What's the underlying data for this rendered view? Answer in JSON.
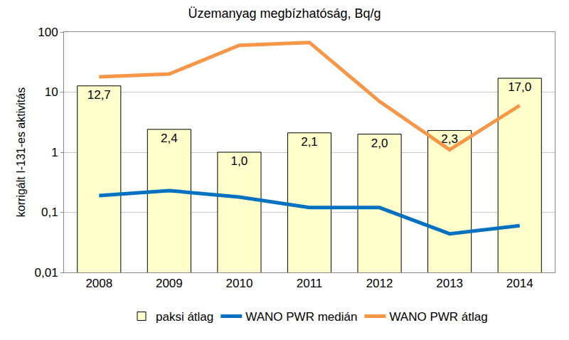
{
  "chart_data": {
    "type": "bar",
    "title": "Üzemanyag megbízhatóság, Bq/g",
    "y_label": "korrigált I-131-es aktivitás",
    "categories": [
      "2008",
      "2009",
      "2010",
      "2011",
      "2012",
      "2013",
      "2014"
    ],
    "series": [
      {
        "name": "paksi átlag",
        "type": "bar",
        "color": "#FFFFCC",
        "values": [
          12.7,
          2.4,
          1.0,
          2.1,
          2.0,
          2.3,
          17.0
        ],
        "value_labels": [
          "12,7",
          "2,4",
          "1,0",
          "2,1",
          "2,0",
          "2,3",
          "17,0"
        ]
      },
      {
        "name": "WANO PWR medián",
        "type": "line",
        "color": "#0070C0",
        "line_style": "solid",
        "values": [
          0.19,
          0.23,
          0.18,
          0.12,
          0.12,
          0.044,
          0.06
        ]
      },
      {
        "name": "WANO PWR átlag",
        "type": "line",
        "color": "#F79646",
        "line_style": "solid",
        "values": [
          18,
          20,
          60,
          67,
          7,
          1.1,
          6
        ]
      }
    ],
    "log": "y",
    "ylim": [
      0.01,
      100
    ],
    "yticks": [
      {
        "value": 0.01,
        "label": "0,01"
      },
      {
        "value": 0.1,
        "label": "0,1"
      },
      1,
      10,
      100
    ],
    "grid": true,
    "legend": "bottom",
    "data_labels": true
  }
}
